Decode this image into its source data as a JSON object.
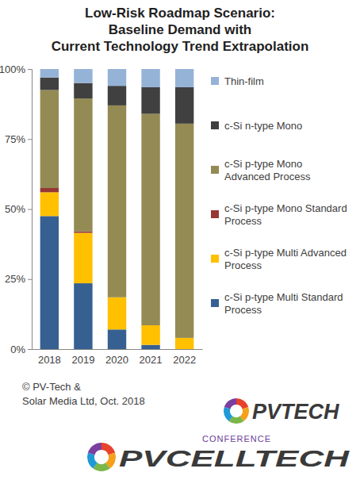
{
  "chart_data": {
    "type": "bar",
    "stacked": true,
    "title": "Low-Risk Roadmap Scenario:",
    "subtitle": [
      "Baseline Demand with",
      "Current Technology Trend Extrapolation"
    ],
    "categories": [
      "2018",
      "2019",
      "2020",
      "2021",
      "2022"
    ],
    "series": [
      {
        "name": "c-Si p-type Multi Standard Process",
        "color": "#376092",
        "values": [
          47.5,
          23.5,
          7,
          1.5,
          0
        ]
      },
      {
        "name": "c-Si p-type Multi Advanced Process",
        "color": "#ffc000",
        "values": [
          8.5,
          18,
          11.5,
          7,
          4
        ]
      },
      {
        "name": "c-Si p-type Mono Standard Process",
        "color": "#953735",
        "values": [
          1.5,
          0.5,
          0,
          0,
          0
        ]
      },
      {
        "name": "c-Si p-type Mono Advanced Process",
        "color": "#948a54",
        "values": [
          35,
          47.5,
          68.5,
          75.5,
          76.5
        ]
      },
      {
        "name": "c-Si n-type Mono",
        "color": "#404040",
        "values": [
          4.5,
          5.5,
          7,
          9.5,
          13
        ]
      },
      {
        "name": "Thin-film",
        "color": "#95b3d7",
        "values": [
          3,
          5,
          6,
          6.5,
          6.5
        ]
      }
    ],
    "ylim": [
      0,
      100
    ],
    "yticks": [
      {
        "value": 0,
        "label": "0%"
      },
      {
        "value": 25,
        "label": "25%"
      },
      {
        "value": 50,
        "label": "50%"
      },
      {
        "value": 75,
        "label": "75%"
      },
      {
        "value": 100,
        "label": "100%"
      }
    ],
    "grid": false,
    "legend": "right",
    "annotations": [
      "© PV-Tech &",
      "Solar Media Ltd, Oct. 2018",
      "PVTECH",
      "CONFERENCE",
      "PVCELLTECH"
    ]
  }
}
